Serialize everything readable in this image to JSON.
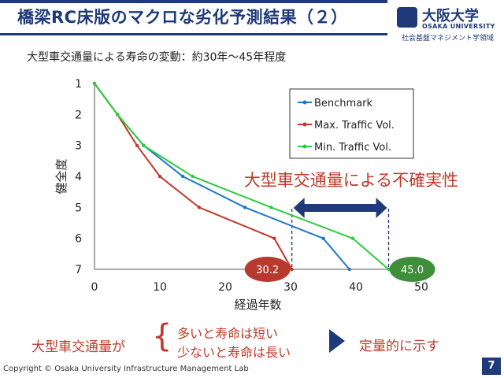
{
  "slide": {
    "title": "橋梁RC床版のマクロな劣化予測結果（２）",
    "subtitle": "大型車交通量による寿命の変動：約30年～45年程度",
    "logo": {
      "name": "大阪大学",
      "name_en": "OSAKA UNIVERSITY",
      "department": "社会基盤マネジメント学領域"
    },
    "bottom": {
      "lead": "大型車交通量が",
      "option1": "多いと寿命は短い",
      "option2": "少ないと寿命は長い",
      "conclusion": "定量的に示す"
    },
    "copyright": "Copyright © Osaka University Infrastructure Management Lab",
    "page_number": "7",
    "colors": {
      "navy": "#1f3a7a",
      "red_text": "#c0392b"
    }
  },
  "chart_data": {
    "type": "line",
    "title": "",
    "xlabel": "経過年数",
    "ylabel": "健全度",
    "xlim": [
      0,
      50
    ],
    "ylim": [
      1,
      7
    ],
    "y_inverted": true,
    "x_ticks": [
      0,
      10,
      20,
      30,
      40,
      50
    ],
    "y_ticks": [
      1,
      2,
      3,
      4,
      5,
      6,
      7
    ],
    "grid": false,
    "legend_position": "top-right",
    "series": [
      {
        "name": "Benchmark",
        "color": "#1f77c4",
        "points": [
          [
            0,
            1
          ],
          [
            3.5,
            2
          ],
          [
            7.5,
            3
          ],
          [
            13.5,
            4
          ],
          [
            23,
            5
          ],
          [
            35,
            6
          ],
          [
            39,
            7
          ]
        ]
      },
      {
        "name": "Max. Traffic Vol.",
        "color": "#c0392b",
        "points": [
          [
            0,
            1
          ],
          [
            3.5,
            2
          ],
          [
            6.5,
            3
          ],
          [
            10,
            4
          ],
          [
            16,
            5
          ],
          [
            27.5,
            6
          ],
          [
            30.2,
            7
          ]
        ]
      },
      {
        "name": "Min. Traffic Vol.",
        "color": "#2ecc40",
        "points": [
          [
            0,
            1
          ],
          [
            3.5,
            2
          ],
          [
            7.5,
            3
          ],
          [
            15,
            4
          ],
          [
            27,
            5
          ],
          [
            39.5,
            6
          ],
          [
            45,
            7
          ]
        ]
      }
    ],
    "annotations": {
      "label": "大型車交通量による不確実性",
      "min_life": "30.2",
      "max_life": "45.0",
      "min_life_value": 30.2,
      "max_life_value": 45.0
    }
  }
}
